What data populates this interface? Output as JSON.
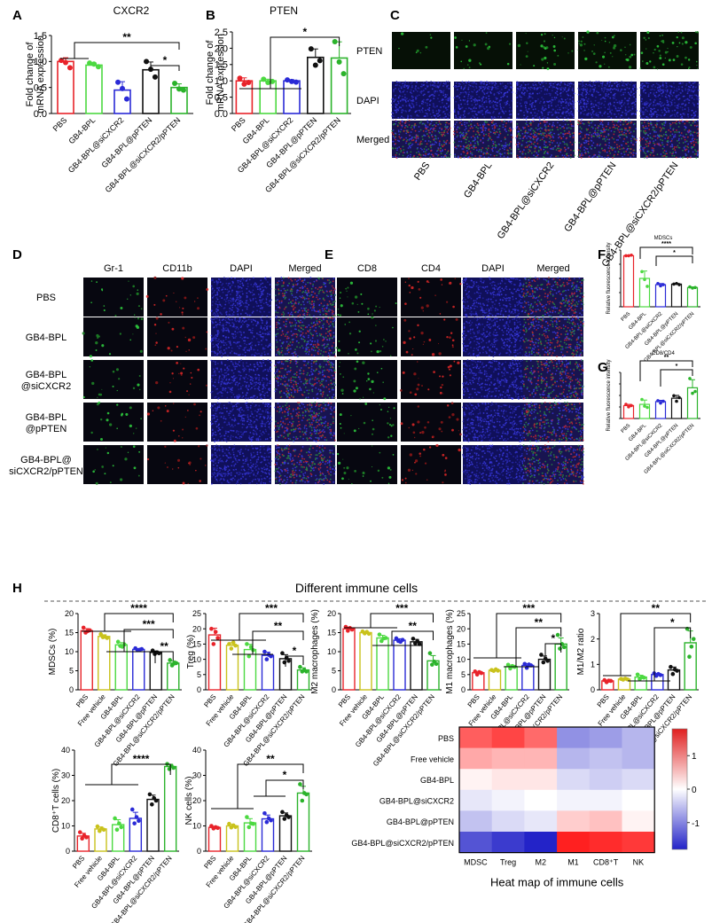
{
  "panel_letters": {
    "A": "A",
    "B": "B",
    "C": "C",
    "D": "D",
    "E": "E",
    "F": "F",
    "G": "G",
    "H": "H"
  },
  "colors": {
    "pbs": "#e8232a",
    "bpl": "#4cd941",
    "siCXCR2": "#2a2ad6",
    "pPTEN": "#111111",
    "combo": "#2bb32b",
    "vehicle": "#c9c21c",
    "red": "#e02020",
    "blue": "#2323c8"
  },
  "panel_C": {
    "rows": [
      "PTEN",
      "DAPI",
      "Merged"
    ],
    "cols": [
      "PBS",
      "GB4-BPL",
      "GB4-BPL@siCXCR2",
      "GB4-BPL@pPTEN",
      "GB4-BPL@siCXCR2/pPTEN"
    ]
  },
  "panel_D": {
    "cols": [
      "Gr-1",
      "CD11b",
      "DAPI",
      "Merged"
    ],
    "rows": [
      "PBS",
      "GB4-BPL",
      "GB4-BPL\n@siCXCR2",
      "GB4-BPL\n@pPTEN",
      "GB4-BPL@\nsiCXCR2/pPTEN"
    ]
  },
  "panel_E": {
    "cols": [
      "CD8",
      "CD4",
      "DAPI",
      "Merged"
    ]
  },
  "section_H_title": "Different immune cells",
  "chart_data": [
    {
      "id": "A",
      "type": "bar",
      "title": "CXCR2",
      "ylabel": "Fold change of mRNA expression",
      "ylim": [
        0,
        1.5
      ],
      "yticks": [
        "0.0",
        "0.5",
        "1.0",
        "1.5"
      ],
      "categories": [
        "PBS",
        "GB4-BPL",
        "GB4-BPL@siCXCR2",
        "GB4-BPL@pPTEN",
        "GB4-BPL@siCXCR2/pPTEN"
      ],
      "values": [
        1.0,
        0.93,
        0.45,
        0.84,
        0.5
      ],
      "points": [
        [
          1.02,
          0.98,
          0.88
        ],
        [
          0.97,
          0.95,
          0.9
        ],
        [
          0.6,
          0.48,
          0.28
        ],
        [
          1.0,
          0.85,
          0.7
        ],
        [
          0.58,
          0.47,
          0.45
        ]
      ],
      "sig": [
        {
          "label": "**"
        },
        {
          "label": "*"
        }
      ]
    },
    {
      "id": "B",
      "type": "bar",
      "title": "PTEN",
      "ylabel": "Fold change of mRNA expression",
      "ylim": [
        0,
        2.5
      ],
      "yticks": [
        "0.0",
        "0.5",
        "1.0",
        "1.5",
        "2.0",
        "2.5"
      ],
      "categories": [
        "PBS",
        "GB4-BPL",
        "GB4-BPL@siCXCR2",
        "GB4-BPL@pPTEN",
        "GB4-BPL@siCXCR2/pPTEN"
      ],
      "values": [
        1.0,
        1.0,
        1.0,
        1.72,
        1.7
      ],
      "points": [
        [
          1.08,
          0.9,
          0.95
        ],
        [
          1.05,
          0.95,
          0.98
        ],
        [
          1.03,
          0.98,
          0.96
        ],
        [
          1.98,
          1.48,
          1.62
        ],
        [
          2.2,
          1.58,
          1.22
        ]
      ],
      "sig": [
        {
          "label": "*"
        }
      ]
    },
    {
      "id": "F",
      "type": "bar",
      "title": "MDSCs",
      "ylabel": "Relative fluorescence intensity",
      "ylim": [
        0,
        10
      ],
      "categories": [
        "PBS",
        "GB4-BPL",
        "GB4-BPL@siCXCR2",
        "GB4-BPL@pPTEN",
        "GB4-BPL@siCXCR2/pPTEN"
      ],
      "values": [
        9.0,
        5.0,
        3.9,
        4.0,
        3.4
      ],
      "points": [
        [
          9.0,
          9.0,
          9.1
        ],
        [
          6.2,
          4.8,
          3.6
        ],
        [
          4.1,
          3.7,
          3.9
        ],
        [
          4.0,
          4.1,
          3.9
        ],
        [
          3.5,
          3.3,
          3.4
        ]
      ],
      "sig": [
        {
          "label": "****"
        },
        {
          "label": "*"
        }
      ]
    },
    {
      "id": "G",
      "type": "bar",
      "title": "CD8/CD4",
      "ylabel": "Relative fluorescence intensity",
      "ylim": [
        0,
        1.5
      ],
      "categories": [
        "PBS",
        "GB4-BPL",
        "GB4-BPL@siCXCR2",
        "GB4-BPL@pPTEN",
        "GB4-BPL@siCXCR2/pPTEN"
      ],
      "values": [
        0.42,
        0.46,
        0.55,
        0.66,
        1.0
      ],
      "points": [
        [
          0.46,
          0.38,
          0.42
        ],
        [
          0.62,
          0.4,
          0.36
        ],
        [
          0.58,
          0.5,
          0.56
        ],
        [
          0.74,
          0.56,
          0.68
        ],
        [
          1.3,
          0.82,
          0.88
        ]
      ],
      "sig": [
        {
          "label": "**"
        },
        {
          "label": "*"
        }
      ]
    },
    {
      "id": "H1",
      "type": "bar",
      "ylabel": "MDSCs (%)",
      "ylim": [
        0,
        20
      ],
      "yticks": [
        "0",
        "5",
        "10",
        "15",
        "20"
      ],
      "categories": [
        "PBS",
        "Free vehicle",
        "GB4-BPL",
        "GB4-BPL@siCXCR2",
        "GB4-BPL@pPTEN",
        "GB4-BPL@siCXCR2/pPTEN"
      ],
      "values": [
        15.5,
        14.0,
        11.8,
        10.6,
        9.8,
        7.0
      ],
      "points": [
        [
          16.3,
          15.0,
          15.4,
          15.6
        ],
        [
          14.6,
          13.8,
          13.9,
          13.6
        ],
        [
          12.6,
          11.5,
          11.3,
          11.9
        ],
        [
          10.9,
          10.4,
          10.5,
          10.7
        ],
        [
          10.3,
          9.4,
          9.8,
          9.6
        ],
        [
          7.8,
          6.4,
          6.9,
          7.0
        ]
      ],
      "sig": [
        {
          "label": "****"
        },
        {
          "label": "***"
        },
        {
          "label": "**"
        }
      ]
    },
    {
      "id": "H2",
      "type": "bar",
      "ylabel": "Treg (%)",
      "ylim": [
        0,
        25
      ],
      "yticks": [
        "0",
        "5",
        "10",
        "15",
        "20",
        "25"
      ],
      "categories": [
        "PBS",
        "Free vehicle",
        "GB4-BPL",
        "GB4-BPL@siCXCR2",
        "GB4-BPL@pPTEN",
        "GB4-BPL@siCXCR2/pPTEN"
      ],
      "values": [
        18.0,
        14.6,
        13.2,
        11.3,
        10.2,
        6.5
      ],
      "points": [
        [
          20.0,
          15.0,
          19.0,
          17.0
        ],
        [
          15.0,
          13.5,
          15.5,
          14.5
        ],
        [
          15.0,
          11.0,
          14.0,
          13.0
        ],
        [
          12.5,
          10.0,
          11.5,
          11.0
        ],
        [
          12.0,
          9.0,
          10.5,
          9.5
        ],
        [
          7.5,
          6.0,
          6.5,
          6.0
        ]
      ],
      "sig": [
        {
          "label": "***"
        },
        {
          "label": "**"
        },
        {
          "label": "*"
        }
      ]
    },
    {
      "id": "H3",
      "type": "bar",
      "ylabel": "M2 macrophages (%)",
      "ylim": [
        0,
        20
      ],
      "yticks": [
        "0",
        "5",
        "10",
        "15",
        "20"
      ],
      "categories": [
        "PBS",
        "Free vehicle",
        "GB4-BPL",
        "GB4-BPL@siCXCR2",
        "GB4-BPL@pPTEN",
        "GB4-BPL@siCXCR2/pPTEN"
      ],
      "values": [
        16.0,
        15.0,
        13.6,
        13.0,
        12.6,
        7.6
      ],
      "points": [
        [
          16.5,
          15.5,
          16.2,
          15.8
        ],
        [
          15.3,
          14.8,
          15.2,
          14.7
        ],
        [
          14.5,
          12.8,
          13.5,
          13.6
        ],
        [
          13.5,
          12.8,
          12.6,
          13.1
        ],
        [
          13.4,
          12.2,
          12.8,
          12.0
        ],
        [
          9.6,
          6.6,
          7.4,
          6.8
        ]
      ],
      "sig": [
        {
          "label": "***"
        },
        {
          "label": "**"
        }
      ]
    },
    {
      "id": "H4",
      "type": "bar",
      "ylabel": "M1 macrophages (%)",
      "ylim": [
        0,
        25
      ],
      "yticks": [
        "0",
        "5",
        "10",
        "15",
        "20",
        "25"
      ],
      "categories": [
        "PBS",
        "Free vehicle",
        "GB4-BPL",
        "GB4-BPL@siCXCR2",
        "GB4-BPL@pPTEN",
        "GB4-BPL@siCXCR2/pPTEN"
      ],
      "values": [
        5.6,
        6.4,
        7.6,
        8.0,
        10.0,
        15.0
      ],
      "points": [
        [
          6.0,
          5.0,
          5.8,
          5.5
        ],
        [
          6.5,
          6.2,
          6.7,
          6.3
        ],
        [
          8.2,
          7.0,
          7.8,
          7.5
        ],
        [
          8.5,
          7.2,
          8.3,
          8.0
        ],
        [
          11.5,
          9.0,
          10.2,
          9.5
        ],
        [
          18.0,
          13.5,
          15.0,
          14.0
        ]
      ],
      "sig": [
        {
          "label": "***"
        },
        {
          "label": "**"
        },
        {
          "label": "*"
        }
      ]
    },
    {
      "id": "H5",
      "type": "bar",
      "ylabel": "M1/M2 ratio",
      "ylim": [
        0,
        3
      ],
      "yticks": [
        "0",
        "1",
        "2",
        "3"
      ],
      "categories": [
        "PBS",
        "Free vehicle",
        "GB4-BPL",
        "GB4-BPL@siCXCR2",
        "GB4-BPL@pPTEN",
        "GB4-BPL@siCXCR2/pPTEN"
      ],
      "values": [
        0.35,
        0.42,
        0.5,
        0.6,
        0.78,
        1.85
      ],
      "points": [
        [
          0.38,
          0.3,
          0.36,
          0.35
        ],
        [
          0.43,
          0.4,
          0.44,
          0.41
        ],
        [
          0.6,
          0.42,
          0.5,
          0.48
        ],
        [
          0.65,
          0.55,
          0.62,
          0.58
        ],
        [
          0.9,
          0.62,
          0.8,
          0.75
        ],
        [
          2.4,
          1.3,
          1.7,
          2.0
        ]
      ],
      "sig": [
        {
          "label": "**"
        },
        {
          "label": "*"
        }
      ]
    },
    {
      "id": "H6",
      "type": "bar",
      "ylabel": "CD8⁺T cells (%)",
      "ylim": [
        0,
        40
      ],
      "yticks": [
        "0",
        "10",
        "20",
        "30",
        "40"
      ],
      "categories": [
        "PBS",
        "Free vehicle",
        "GB4-BPL",
        "GB4-BPL@siCXCR2",
        "GB4-BPL@pPTEN",
        "GB4-BPL@siCXCR2/pPTEN"
      ],
      "values": [
        6.0,
        8.8,
        10.5,
        13.0,
        20.5,
        33.5
      ],
      "points": [
        [
          7.5,
          5.0,
          6.2,
          5.5
        ],
        [
          9.8,
          8.0,
          9.0,
          8.5
        ],
        [
          13.0,
          8.5,
          11.0,
          9.5
        ],
        [
          16.5,
          11.0,
          13.5,
          12.0
        ],
        [
          22.5,
          18.5,
          21.0,
          20.0
        ],
        [
          34.5,
          32.5,
          33.8,
          33.0
        ]
      ],
      "sig": [
        {
          "label": "****"
        }
      ]
    },
    {
      "id": "H7",
      "type": "bar",
      "ylabel": "NK cells (%)",
      "ylim": [
        0,
        40
      ],
      "yticks": [
        "0",
        "10",
        "20",
        "30",
        "40"
      ],
      "categories": [
        "PBS",
        "Free vehicle",
        "GB4-BPL",
        "GB4-BPL@siCXCR2",
        "GB4-BPL@pPTEN",
        "GB4-BPL@siCXCR2/pPTEN"
      ],
      "values": [
        9.4,
        10.0,
        11.2,
        12.8,
        14.0,
        23.0
      ],
      "points": [
        [
          10.0,
          9.0,
          9.5,
          9.2
        ],
        [
          10.8,
          9.4,
          10.2,
          9.6
        ],
        [
          13.5,
          9.5,
          11.0,
          10.8
        ],
        [
          15.0,
          11.5,
          13.0,
          12.2
        ],
        [
          15.5,
          12.8,
          14.2,
          13.5
        ],
        [
          26.5,
          20.0,
          23.0,
          22.5
        ]
      ],
      "sig": [
        {
          "label": "**"
        },
        {
          "label": "*"
        }
      ]
    },
    {
      "id": "Heat",
      "type": "heatmap",
      "title": "Heat map of immune cells",
      "rows": [
        "PBS",
        "Free vehicle",
        "GB4-BPL",
        "GB4-BPL@siCXCR2",
        "GB4-BPL@pPTEN",
        "GB4-BPL@siCXCR2/pPTEN"
      ],
      "cols": [
        "MDSC",
        "Treg",
        "M2",
        "M1",
        "CD8⁺T",
        "NK"
      ],
      "values": [
        [
          1.3,
          1.5,
          1.2,
          -0.9,
          -0.8,
          -0.6
        ],
        [
          0.7,
          0.6,
          0.6,
          -0.6,
          -0.5,
          -0.6
        ],
        [
          0.1,
          0.2,
          0.2,
          -0.3,
          -0.4,
          -0.3
        ],
        [
          -0.2,
          -0.1,
          0.0,
          -0.1,
          -0.1,
          0.0
        ],
        [
          -0.5,
          -0.3,
          -0.2,
          0.4,
          0.5,
          0.1
        ],
        [
          -1.4,
          -1.6,
          -1.8,
          1.8,
          1.7,
          1.6
        ]
      ],
      "scale": [
        -1.8,
        1.8
      ],
      "scale_ticks": [
        "1",
        "0",
        "-1"
      ]
    }
  ]
}
